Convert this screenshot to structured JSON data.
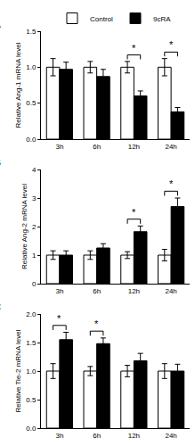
{
  "chart_data": [
    {
      "type": "bar",
      "title": "A",
      "y_label": "Relative Ang-1 mRNA level",
      "categories": [
        "3h",
        "6h",
        "12h",
        "24h"
      ],
      "series": [
        {
          "name": "Control",
          "color": "#ffffff",
          "values": [
            1.0,
            1.0,
            1.0,
            1.0
          ],
          "errors": [
            0.12,
            0.08,
            0.08,
            0.12
          ]
        },
        {
          "name": "9cRA",
          "color": "#000000",
          "values": [
            0.97,
            0.87,
            0.6,
            0.38
          ],
          "errors": [
            0.1,
            0.1,
            0.07,
            0.06
          ]
        }
      ],
      "ylim": [
        0,
        1.5
      ],
      "yticks": [
        {
          "value": 0,
          "label": "0.0"
        },
        {
          "value": 0.5,
          "label": "0.5"
        },
        {
          "value": 1,
          "label": "1.0"
        },
        {
          "value": 1.5,
          "label": "1.5"
        }
      ],
      "legend": "top",
      "annotations": [
        {
          "category": "12h",
          "text": "*"
        },
        {
          "category": "24h",
          "text": "*"
        }
      ]
    },
    {
      "type": "bar",
      "title": "B",
      "y_label": "Relative Ang-2 mRNA level",
      "categories": [
        "3h",
        "6h",
        "12h",
        "24h"
      ],
      "series": [
        {
          "name": "Control",
          "color": "#ffffff",
          "values": [
            1.0,
            1.0,
            1.0,
            1.0
          ],
          "errors": [
            0.15,
            0.15,
            0.12,
            0.2
          ]
        },
        {
          "name": "9cRA",
          "color": "#000000",
          "values": [
            1.0,
            1.25,
            1.82,
            2.7
          ],
          "errors": [
            0.15,
            0.15,
            0.2,
            0.3
          ]
        }
      ],
      "ylim": [
        0,
        4
      ],
      "yticks": [
        0,
        1,
        2,
        3,
        4
      ],
      "annotations": [
        {
          "category": "12h",
          "text": "*"
        },
        {
          "category": "24h",
          "text": "*"
        }
      ]
    },
    {
      "type": "bar",
      "title": "C",
      "y_label": "Relative Tie-2 mRNA level",
      "categories": [
        "3h",
        "6h",
        "12h",
        "24h"
      ],
      "series": [
        {
          "name": "Control",
          "color": "#ffffff",
          "values": [
            1.0,
            1.0,
            1.0,
            1.0
          ],
          "errors": [
            0.13,
            0.08,
            0.1,
            0.13
          ]
        },
        {
          "name": "9cRA",
          "color": "#000000",
          "values": [
            1.55,
            1.48,
            1.18,
            1.0
          ],
          "errors": [
            0.13,
            0.1,
            0.13,
            0.12
          ]
        }
      ],
      "ylim": [
        0,
        2
      ],
      "yticks": [
        {
          "value": 0,
          "label": "0.0"
        },
        {
          "value": 0.5,
          "label": "0.5"
        },
        {
          "value": 1,
          "label": "1.0"
        },
        {
          "value": 1.5,
          "label": "1.5"
        },
        {
          "value": 2,
          "label": "2.0"
        }
      ],
      "annotations": [
        {
          "category": "3h",
          "text": "*"
        },
        {
          "category": "6h",
          "text": "*"
        }
      ]
    }
  ]
}
